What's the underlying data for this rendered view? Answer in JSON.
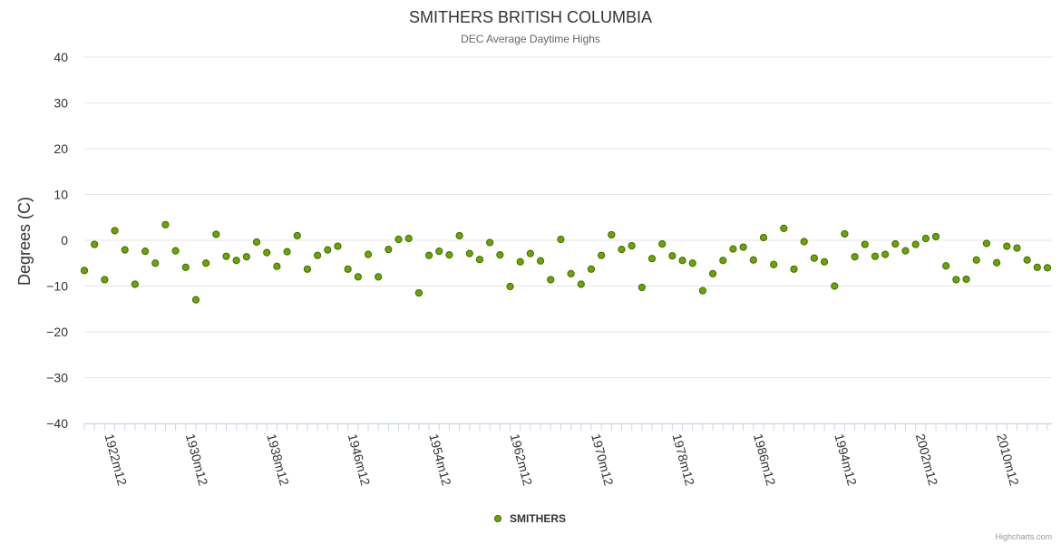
{
  "chart_data": {
    "type": "scatter",
    "title": "SMITHERS BRITISH COLUMBIA",
    "subtitle": "DEC Average Daytime Highs",
    "ylabel": "Degrees (C)",
    "xlabel": "",
    "ylim": [
      -40,
      40
    ],
    "yticks": [
      40,
      30,
      20,
      10,
      0,
      -10,
      -20,
      -30,
      -40
    ],
    "ytick_labels": [
      "40",
      "30",
      "20",
      "10",
      "0",
      "−10",
      "−20",
      "−30",
      "−40"
    ],
    "x_start_year": 1920,
    "x_end_year": 2015,
    "xtick_labels": [
      "1922m12",
      "1930m12",
      "1938m12",
      "1946m12",
      "1954m12",
      "1962m12",
      "1970m12",
      "1978m12",
      "1986m12",
      "1994m12",
      "2002m12",
      "2010m12"
    ],
    "xtick_years": [
      1922,
      1930,
      1938,
      1946,
      1954,
      1962,
      1970,
      1978,
      1986,
      1994,
      2002,
      2010
    ],
    "series": [
      {
        "name": "SMITHERS",
        "color": "#6aa500",
        "x": [
          1920,
          1921,
          1922,
          1923,
          1924,
          1925,
          1926,
          1927,
          1928,
          1929,
          1930,
          1931,
          1932,
          1933,
          1934,
          1935,
          1936,
          1937,
          1938,
          1939,
          1940,
          1941,
          1942,
          1943,
          1944,
          1945,
          1946,
          1947,
          1948,
          1949,
          1950,
          1951,
          1952,
          1953,
          1954,
          1955,
          1956,
          1957,
          1958,
          1959,
          1960,
          1961,
          1962,
          1963,
          1964,
          1965,
          1966,
          1967,
          1968,
          1969,
          1970,
          1971,
          1972,
          1973,
          1974,
          1975,
          1976,
          1977,
          1978,
          1979,
          1980,
          1981,
          1982,
          1983,
          1984,
          1985,
          1986,
          1987,
          1988,
          1989,
          1990,
          1991,
          1992,
          1993,
          1994,
          1995,
          1996,
          1997,
          1998,
          1999,
          2000,
          2001,
          2002,
          2003,
          2004,
          2005,
          2006,
          2007,
          2008,
          2009,
          2010,
          2011,
          2012,
          2013,
          2014,
          2015
        ],
        "values": [
          -6.6,
          -0.9,
          -8.6,
          2.1,
          -2.1,
          -9.6,
          -2.4,
          -5.0,
          3.4,
          -2.3,
          -5.9,
          -13.0,
          -5.0,
          1.3,
          -3.5,
          -4.4,
          -3.6,
          -0.4,
          -2.7,
          -5.7,
          -2.5,
          1.0,
          -6.3,
          -3.3,
          -2.1,
          -1.3,
          -6.3,
          -8.0,
          -3.1,
          -8.0,
          -2.0,
          0.2,
          0.4,
          -11.5,
          -3.3,
          -2.4,
          -3.2,
          1.0,
          -2.9,
          -4.2,
          -0.5,
          -3.2,
          -10.1,
          -4.7,
          -2.9,
          -4.5,
          -8.6,
          0.2,
          -7.3,
          -9.6,
          -6.3,
          -3.3,
          1.2,
          -2.0,
          -1.2,
          -10.3,
          -4.0,
          -0.8,
          -3.4,
          -4.4,
          -5.0,
          -11.0,
          -7.3,
          -4.4,
          -1.9,
          -1.5,
          -4.3,
          0.6,
          -5.3,
          2.6,
          -6.3,
          -0.3,
          -3.9,
          -4.7,
          -10.0,
          1.4,
          -3.6,
          -0.9,
          -3.5,
          -3.1,
          -0.8,
          -2.3,
          -0.9,
          0.4,
          0.8,
          -5.6,
          -8.6,
          -8.5,
          -4.3,
          -0.7,
          -4.9,
          -1.3,
          -1.7,
          -4.3,
          -5.9,
          -6.0
        ]
      }
    ],
    "legend": "bottom-center"
  },
  "credit": "Highcharts.com"
}
